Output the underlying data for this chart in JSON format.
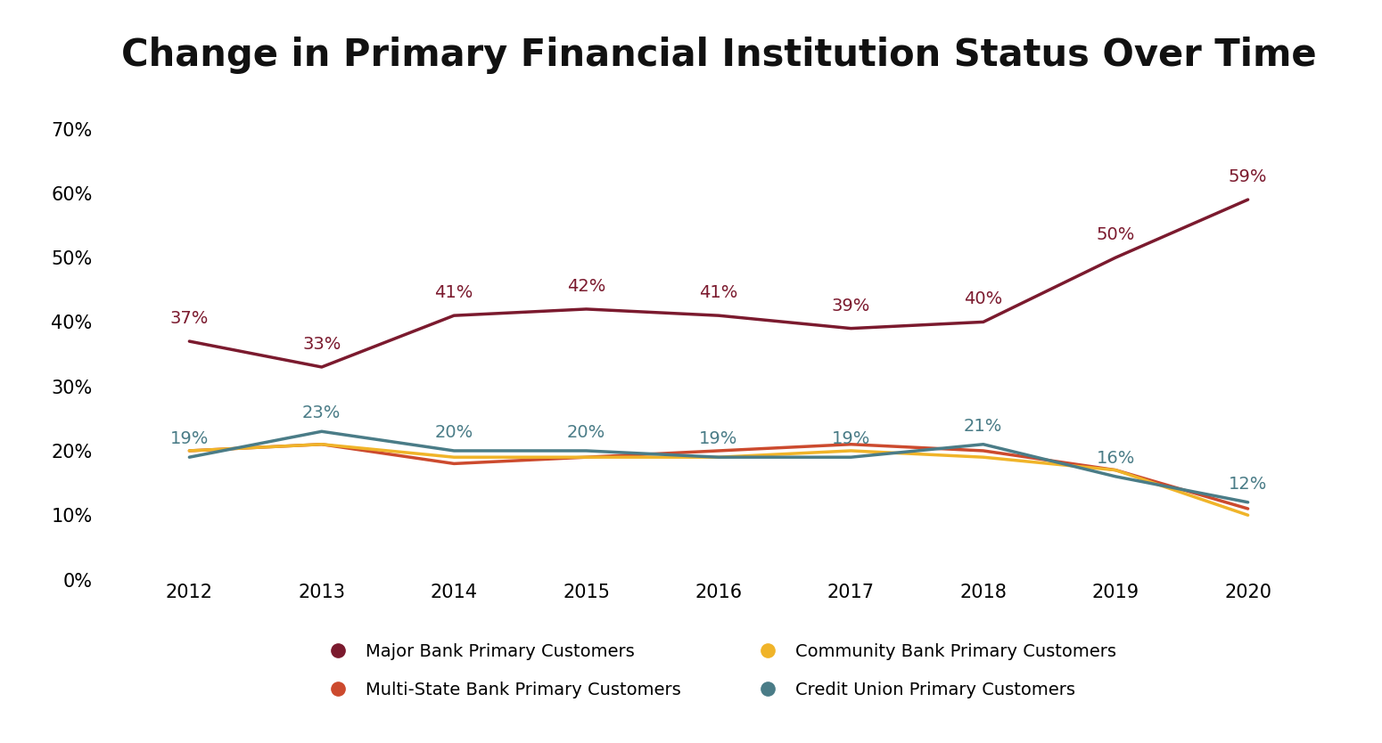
{
  "title": "Change in Primary Financial Institution Status Over Time",
  "years": [
    2012,
    2013,
    2014,
    2015,
    2016,
    2017,
    2018,
    2019,
    2020
  ],
  "series": [
    {
      "label": "Major Bank Primary Customers",
      "color": "#7B1A2E",
      "values": [
        37,
        33,
        41,
        42,
        41,
        39,
        40,
        50,
        59
      ]
    },
    {
      "label": "Multi-State Bank Primary Customers",
      "color": "#CC4A2E",
      "values": [
        20,
        21,
        18,
        19,
        20,
        21,
        20,
        17,
        11
      ]
    },
    {
      "label": "Community Bank Primary Customers",
      "color": "#F0B429",
      "values": [
        20,
        21,
        19,
        19,
        19,
        20,
        19,
        17,
        10
      ]
    },
    {
      "label": "Credit Union Primary Customers",
      "color": "#4A7C87",
      "values": [
        19,
        23,
        20,
        20,
        19,
        19,
        21,
        16,
        12
      ]
    }
  ],
  "major_bank_labels": [
    "37%",
    "33%",
    "41%",
    "42%",
    "41%",
    "39%",
    "40%",
    "50%",
    "59%"
  ],
  "credit_union_labels": [
    "19%",
    "23%",
    "20%",
    "20%",
    "19%",
    "19%",
    "21%",
    "16%",
    "12%"
  ],
  "legend_order": [
    0,
    1,
    2,
    3
  ],
  "ylim": [
    0,
    75
  ],
  "yticks": [
    0,
    10,
    20,
    30,
    40,
    50,
    60,
    70
  ],
  "xlim": [
    2011.3,
    2020.7
  ],
  "background_color": "#FFFFFF",
  "line_width": 2.5,
  "title_fontsize": 30,
  "tick_fontsize": 15,
  "label_fontsize": 14,
  "legend_fontsize": 14
}
